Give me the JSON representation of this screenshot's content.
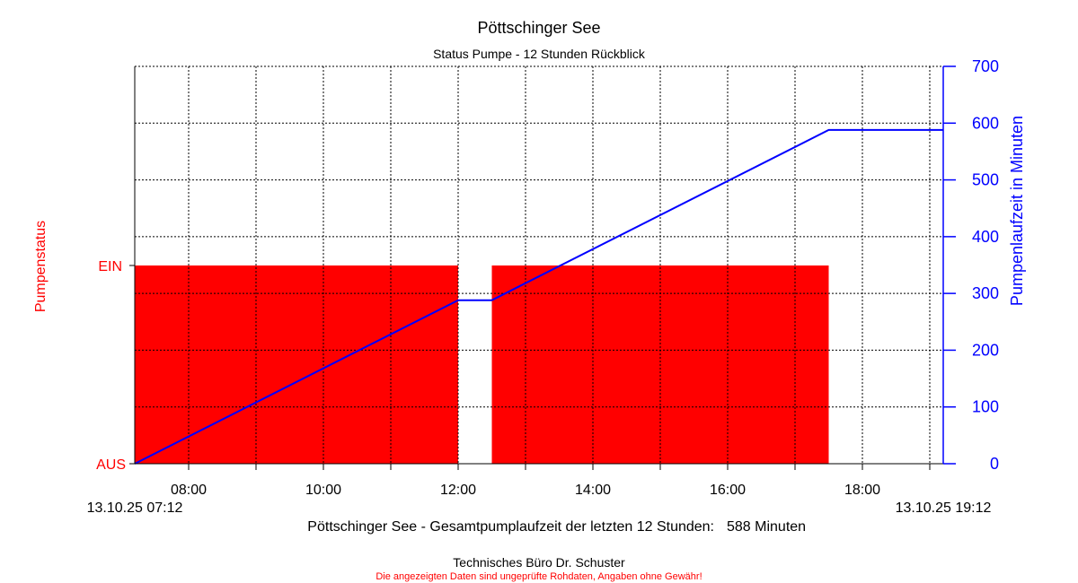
{
  "title": "Pöttschinger See",
  "subtitle": "Status Pumpe - 12 Stunden Rückblick",
  "left_axis": {
    "label": "Pumpenstatus",
    "ticks": [
      "EIN",
      "AUS"
    ]
  },
  "right_axis": {
    "label": "Pumpenlaufzeit in Minuten"
  },
  "x_axis": {
    "start_label": "13.10.25 07:12",
    "end_label": "13.10.25 19:12"
  },
  "summary": {
    "text": "Pöttschinger See - Gesamtpumplaufzeit der letzten 12 Stunden:",
    "value": "588 Minuten"
  },
  "footer": {
    "company": "Technisches Büro Dr. Schuster",
    "disclaimer": "Die angezeigten Daten sind ungeprüfte Rohdaten, Angaben ohne Gewähr!"
  },
  "colors": {
    "status_fill": "#ff0000",
    "runtime_line": "#0000ff",
    "left_axis_text": "#ff0000",
    "right_axis_text": "#0000ff",
    "grid": "#000000"
  },
  "chart_data": {
    "type": "area",
    "x_range": [
      "07:12",
      "19:12"
    ],
    "x_ticks": [
      "08:00",
      "10:00",
      "12:00",
      "14:00",
      "16:00",
      "18:00"
    ],
    "y_right_range": [
      0,
      700
    ],
    "y_right_ticks": [
      0,
      100,
      200,
      300,
      400,
      500,
      600,
      700
    ],
    "y_left_ticks": [
      "AUS",
      "EIN"
    ],
    "grid": true,
    "series": [
      {
        "name": "Pumpenstatus",
        "axis": "left",
        "kind": "step-area",
        "segments": [
          {
            "from": "07:12",
            "to": "12:00",
            "state": "EIN"
          },
          {
            "from": "12:00",
            "to": "12:30",
            "state": "AUS"
          },
          {
            "from": "12:30",
            "to": "17:30",
            "state": "EIN"
          },
          {
            "from": "17:30",
            "to": "19:12",
            "state": "AUS"
          }
        ]
      },
      {
        "name": "Pumpenlaufzeit in Minuten",
        "axis": "right",
        "kind": "line",
        "points": [
          {
            "x": "07:12",
            "y": 0
          },
          {
            "x": "12:00",
            "y": 288
          },
          {
            "x": "12:30",
            "y": 288
          },
          {
            "x": "17:30",
            "y": 588
          },
          {
            "x": "19:12",
            "y": 588
          }
        ]
      }
    ]
  }
}
